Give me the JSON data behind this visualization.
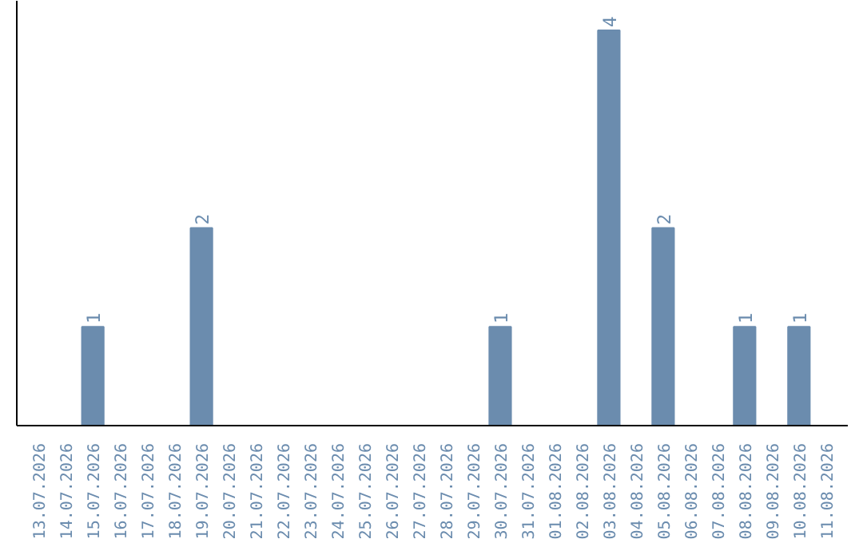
{
  "chart_data": {
    "type": "bar",
    "categories": [
      "13.07.2026",
      "14.07.2026",
      "15.07.2026",
      "16.07.2026",
      "17.07.2026",
      "18.07.2026",
      "19.07.2026",
      "20.07.2026",
      "21.07.2026",
      "22.07.2026",
      "23.07.2026",
      "24.07.2026",
      "25.07.2026",
      "26.07.2026",
      "27.07.2026",
      "28.07.2026",
      "29.07.2026",
      "30.07.2026",
      "31.07.2026",
      "01.08.2026",
      "02.08.2026",
      "03.08.2026",
      "04.08.2026",
      "05.08.2026",
      "06.08.2026",
      "07.08.2026",
      "08.08.2026",
      "09.08.2026",
      "10.08.2026",
      "11.08.2026"
    ],
    "values": [
      0,
      0,
      1,
      0,
      0,
      0,
      2,
      0,
      0,
      0,
      0,
      0,
      0,
      0,
      0,
      0,
      0,
      1,
      0,
      0,
      0,
      4,
      0,
      2,
      0,
      0,
      1,
      0,
      1,
      0
    ],
    "value_labels": [
      null,
      null,
      "1",
      null,
      null,
      null,
      "2",
      null,
      null,
      null,
      null,
      null,
      null,
      null,
      null,
      null,
      null,
      "1",
      null,
      null,
      null,
      "4",
      null,
      "2",
      null,
      null,
      "1",
      null,
      "1",
      null
    ],
    "color": "#6b8cae",
    "tick_labels": "x"
  }
}
